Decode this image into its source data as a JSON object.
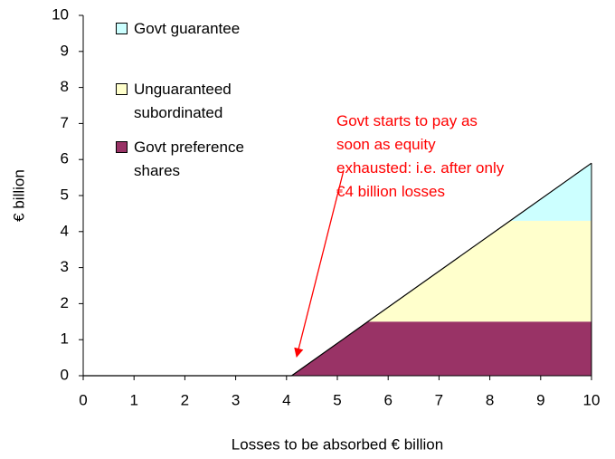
{
  "chart_data": {
    "type": "stacked_area",
    "x": [
      0,
      4.1,
      5.6,
      8.4,
      10
    ],
    "series": [
      {
        "name": "Govt preference shares",
        "color": "#993366",
        "values": [
          0,
          0,
          1.5,
          1.5,
          1.5
        ]
      },
      {
        "name": "Unguaranteed subordinated",
        "color": "#ffffcc",
        "values": [
          0,
          0,
          0,
          2.8,
          2.8
        ]
      },
      {
        "name": "Govt guarantee",
        "color": "#ccffff",
        "values": [
          0,
          0,
          0,
          0,
          1.6
        ]
      }
    ],
    "xlabel": "Losses to be absorbed € billion",
    "ylabel": "€ billion",
    "xlim": [
      0,
      10
    ],
    "xticks": [
      0,
      1,
      2,
      3,
      4,
      5,
      6,
      7,
      8,
      9,
      10
    ],
    "ylim": [
      0,
      10
    ],
    "yticks": [
      0,
      1,
      2,
      3,
      4,
      5,
      6,
      7,
      8,
      9,
      10
    ],
    "annotation": [
      "Govt starts to pay as",
      "soon as equity",
      "exhausted: i.e. after only",
      "€4 billion losses"
    ],
    "annotation_color": "#ff0000"
  }
}
